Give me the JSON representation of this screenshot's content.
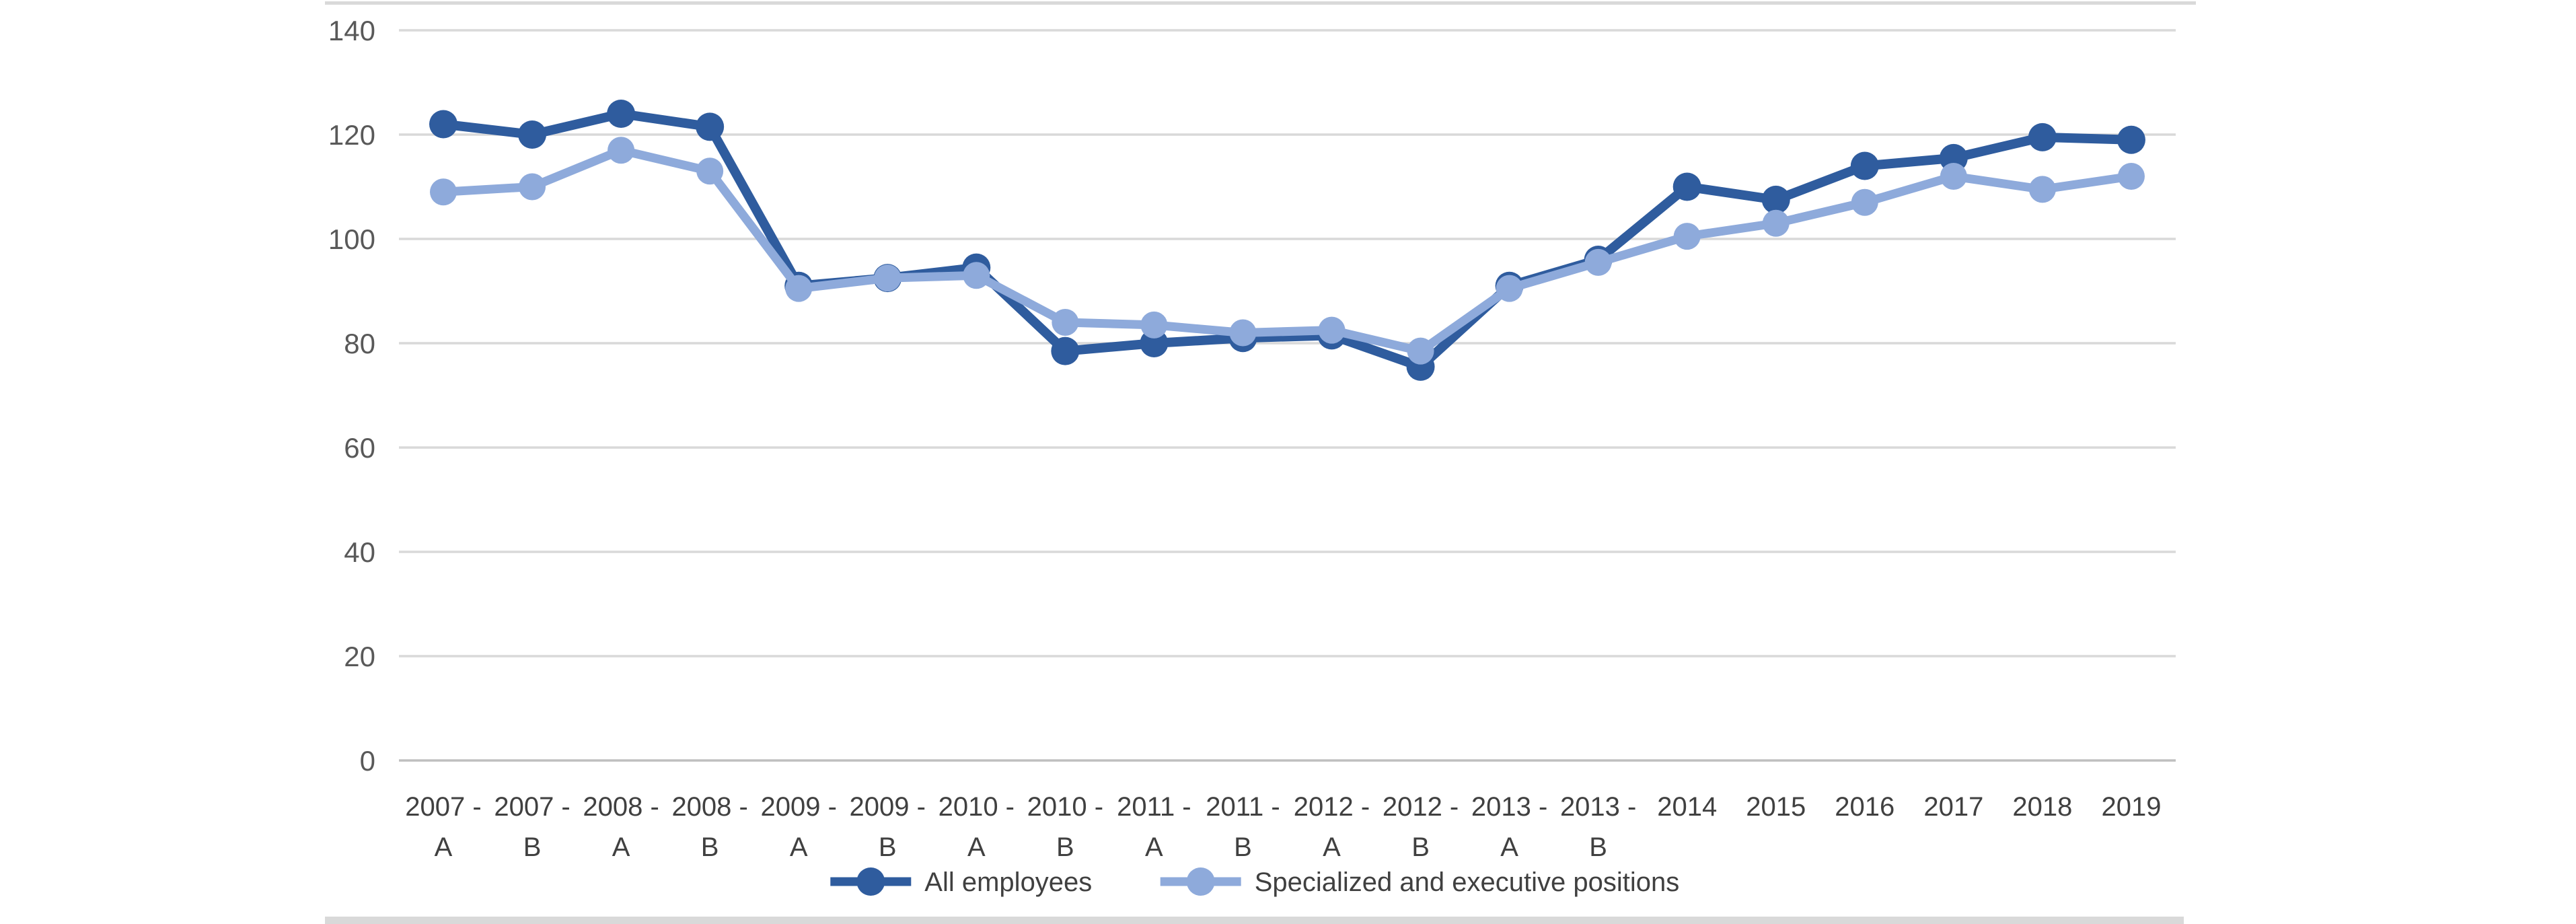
{
  "chart_data": {
    "type": "line",
    "title": "",
    "xlabel": "",
    "ylabel": "",
    "categories": [
      {
        "top": "2007 -",
        "bottom": "A"
      },
      {
        "top": "2007 -",
        "bottom": "B"
      },
      {
        "top": "2008 -",
        "bottom": "A"
      },
      {
        "top": "2008 -",
        "bottom": "B"
      },
      {
        "top": "2009 -",
        "bottom": "A"
      },
      {
        "top": "2009 -",
        "bottom": "B"
      },
      {
        "top": "2010 -",
        "bottom": "A"
      },
      {
        "top": "2010 -",
        "bottom": "B"
      },
      {
        "top": "2011 -",
        "bottom": "A"
      },
      {
        "top": "2011 -",
        "bottom": "B"
      },
      {
        "top": "2012 -",
        "bottom": "A"
      },
      {
        "top": "2012 -",
        "bottom": "B"
      },
      {
        "top": "2013 -",
        "bottom": "A"
      },
      {
        "top": "2013 -",
        "bottom": "B"
      },
      {
        "top": "2014",
        "bottom": ""
      },
      {
        "top": "2015",
        "bottom": ""
      },
      {
        "top": "2016",
        "bottom": ""
      },
      {
        "top": "2017",
        "bottom": ""
      },
      {
        "top": "2018",
        "bottom": ""
      },
      {
        "top": "2019",
        "bottom": ""
      }
    ],
    "series": [
      {
        "name": "All employees",
        "color": "#2F5C9E",
        "values": [
          122,
          120,
          124,
          121.5,
          91,
          92.5,
          94.5,
          78.5,
          80,
          81,
          81.5,
          75.5,
          91,
          96,
          110,
          107.5,
          114,
          115.5,
          119.5,
          119
        ]
      },
      {
        "name": "Specialized and executive positions",
        "color": "#8EAADB",
        "values": [
          109,
          110,
          117,
          113,
          90.5,
          92.5,
          93,
          84,
          83.5,
          82,
          82.5,
          78.5,
          90.5,
          95.5,
          100.5,
          103,
          107,
          112,
          109.5,
          112
        ]
      }
    ],
    "y_axis": {
      "min": 0,
      "max": 140,
      "step": 20,
      "tick_labels": [
        "0",
        "20",
        "40",
        "60",
        "80",
        "100",
        "120",
        "140"
      ]
    },
    "grid": true,
    "legend_position": "bottom",
    "colors": {
      "gridline": "#D9D9D9",
      "zero_line": "#BFBFBF",
      "y_tick_text": "#595959",
      "x_tick_text": "#404040",
      "legend_text": "#404040",
      "page_edge_strip": "#D9D9D9"
    }
  }
}
